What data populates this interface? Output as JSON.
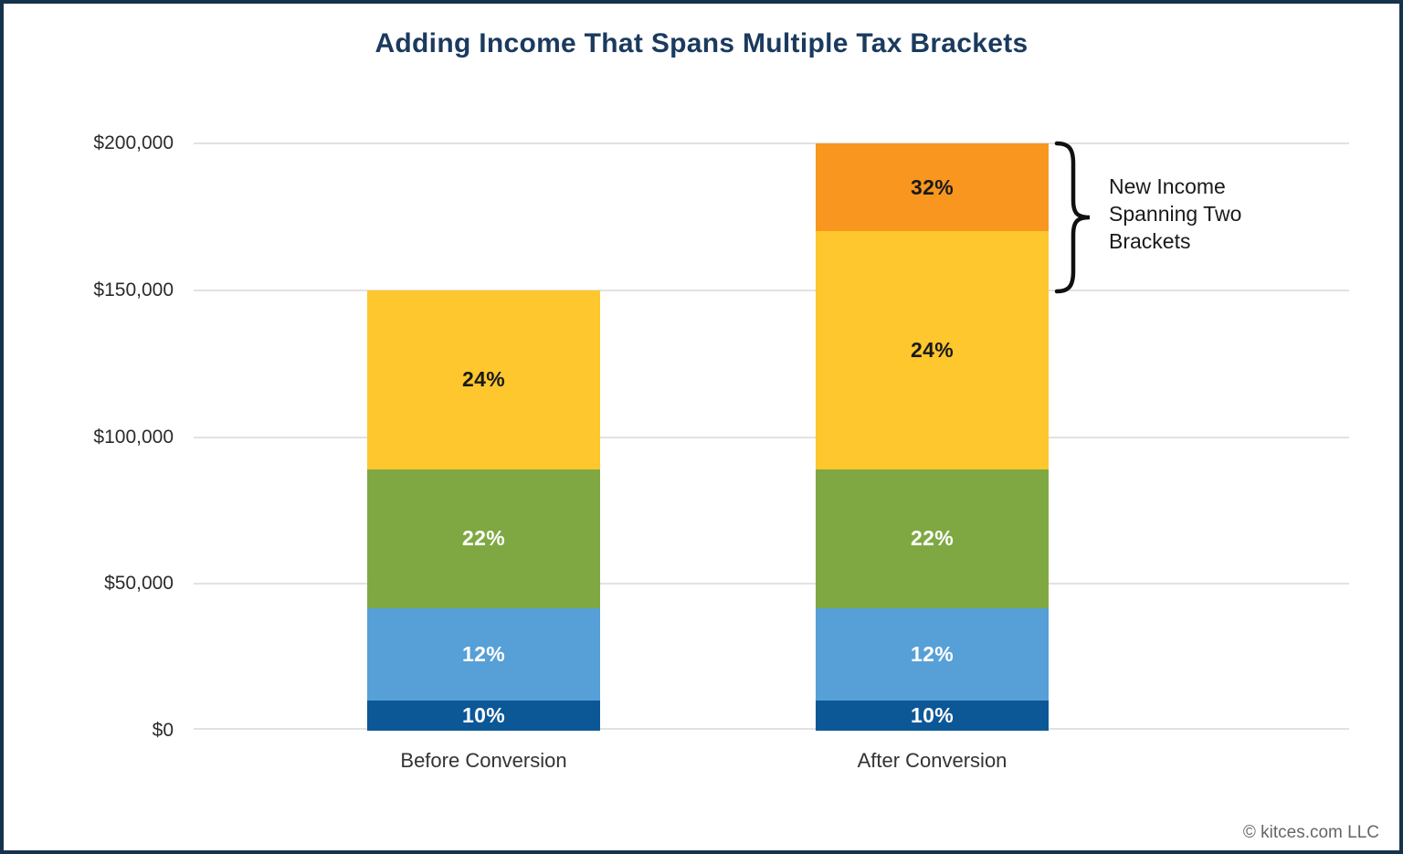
{
  "title": "Adding Income That Spans Multiple Tax Brackets",
  "footer": {
    "credit": "© kitces.com LLC"
  },
  "annotation": {
    "lines": [
      "New Income",
      "Spanning Two",
      "Brackets"
    ],
    "applies_to": "After Conversion",
    "value_range": [
      150000,
      200000
    ]
  },
  "colors": {
    "title": "#1B3A5E",
    "border": "#17324C",
    "gridline": "#E2E2E2",
    "axis_label": "#2B2B2B",
    "annotation_text": "#1A1A1A",
    "footer_text": "#666666"
  },
  "chart_data": {
    "type": "bar",
    "stacked": true,
    "title": "Adding Income That Spans Multiple Tax Brackets",
    "categories": [
      "Before Conversion",
      "After Conversion"
    ],
    "totals": [
      150000,
      200000
    ],
    "ylim": [
      0,
      200000
    ],
    "yticks": [
      0,
      50000,
      100000,
      150000,
      200000
    ],
    "ytick_labels": [
      "$0",
      "$50,000",
      "$100,000",
      "$150,000",
      "$200,000"
    ],
    "grid": true,
    "legend": false,
    "series": [
      {
        "name": "10%",
        "values": [
          10275,
          10275
        ],
        "color": "#0C5896",
        "label_color": "#FFFFFF"
      },
      {
        "name": "12%",
        "values": [
          31500,
          31500
        ],
        "color": "#56A0D7",
        "label_color": "#FFFFFF"
      },
      {
        "name": "22%",
        "values": [
          47300,
          47300
        ],
        "color": "#7FA843",
        "label_color": "#FFFFFF"
      },
      {
        "name": "24%",
        "values": [
          60925,
          80975
        ],
        "color": "#FDC72D",
        "label_color": "#1A1A1A"
      },
      {
        "name": "32%",
        "values": [
          0,
          29950
        ],
        "color": "#F89620",
        "label_color": "#1A1A1A"
      }
    ],
    "annotation": "New Income Spanning Two Brackets"
  }
}
